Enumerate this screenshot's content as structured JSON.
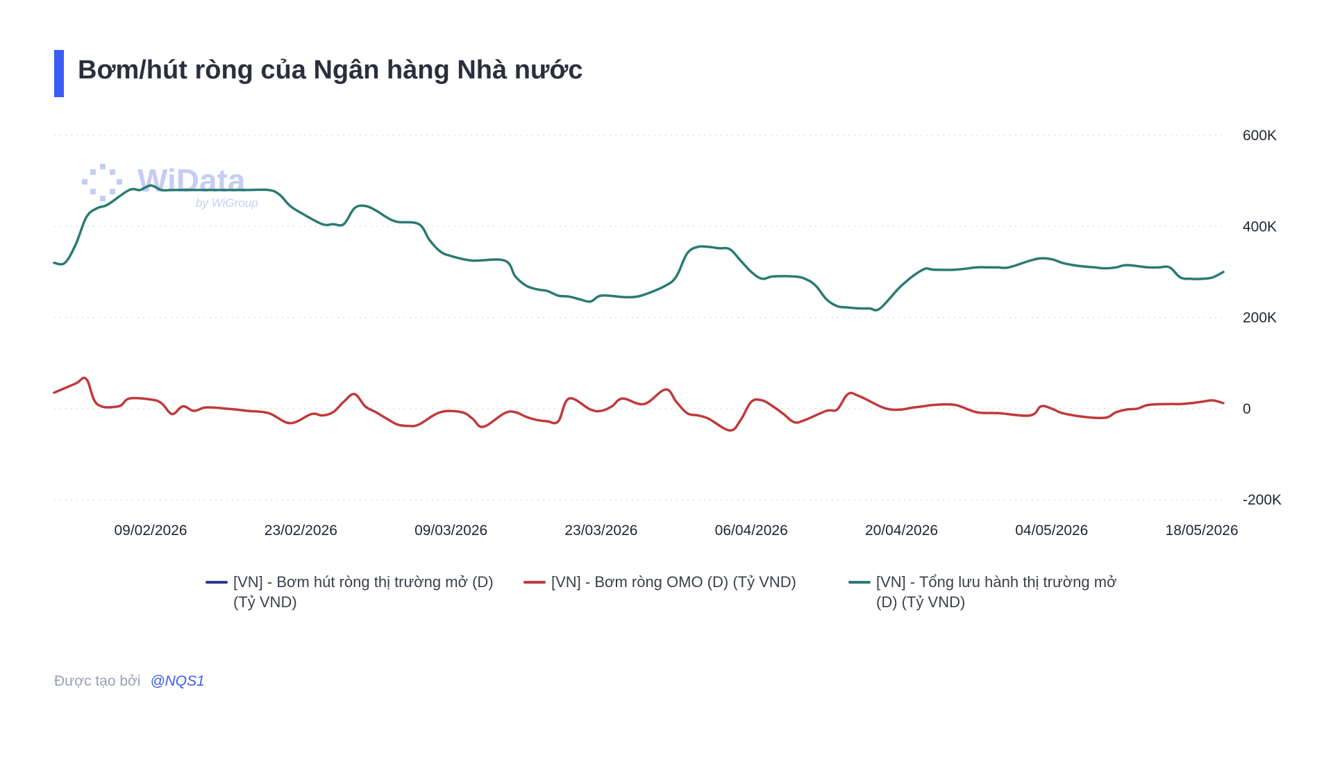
{
  "header": {
    "title": "Bơm/hút ròng của Ngân hàng Nhà nước"
  },
  "watermark": {
    "brand": "WiData",
    "sub": "by WiGroup"
  },
  "footer": {
    "created_by": "Được tạo bởi",
    "handle": "@NQS1"
  },
  "colors": {
    "accent": "#3b5cf5",
    "series_net": "#2e3a8c",
    "series_omo": "#c0393b",
    "series_total": "#2a7a72"
  },
  "chart_data": {
    "type": "line",
    "title": "Bơm/hút ròng của Ngân hàng Nhà nước",
    "xlabel": "",
    "ylabel": "",
    "x_range": [
      "2026-01-31",
      "2026-05-20"
    ],
    "ylim": [
      -200000,
      600000
    ],
    "y_ticks": [
      {
        "value": 600000,
        "label": "600K"
      },
      {
        "value": 400000,
        "label": "400K"
      },
      {
        "value": 200000,
        "label": "200K"
      },
      {
        "value": 0,
        "label": "0"
      },
      {
        "value": -200000,
        "label": "-200K"
      }
    ],
    "x_ticks": [
      "09/02/2026",
      "23/02/2026",
      "09/03/2026",
      "23/03/2026",
      "06/04/2026",
      "20/04/2026",
      "04/05/2026",
      "18/05/2026"
    ],
    "grid": true,
    "legend_position": "bottom",
    "series": [
      {
        "name": "[VN] - Bơm hút ròng thị trường mở (D) (Tỷ VND)",
        "color": "#2e3a8c",
        "x": [],
        "y": []
      },
      {
        "name": "[VN] - Bơm ròng OMO (D) (Tỷ VND)",
        "color": "#c0393b",
        "x": [
          "2026-01-31",
          "2026-02-02",
          "2026-02-03",
          "2026-02-04",
          "2026-02-06",
          "2026-02-07",
          "2026-02-09",
          "2026-02-10",
          "2026-02-11",
          "2026-02-12",
          "2026-02-13",
          "2026-02-14",
          "2026-02-15",
          "2026-02-16",
          "2026-02-17",
          "2026-02-18",
          "2026-02-20",
          "2026-02-22",
          "2026-02-24",
          "2026-02-25",
          "2026-02-26",
          "2026-02-27",
          "2026-02-28",
          "2026-03-01",
          "2026-03-02",
          "2026-03-03",
          "2026-03-04",
          "2026-03-05",
          "2026-03-06",
          "2026-03-08",
          "2026-03-10",
          "2026-03-11",
          "2026-03-12",
          "2026-03-14",
          "2026-03-15",
          "2026-03-16",
          "2026-03-17",
          "2026-03-18",
          "2026-03-19",
          "2026-03-20",
          "2026-03-22",
          "2026-03-23",
          "2026-03-24",
          "2026-03-25",
          "2026-03-27",
          "2026-03-29",
          "2026-03-30",
          "2026-03-31",
          "2026-04-01",
          "2026-04-02",
          "2026-04-04",
          "2026-04-05",
          "2026-04-06",
          "2026-04-07",
          "2026-04-08",
          "2026-04-09",
          "2026-04-10",
          "2026-04-11",
          "2026-04-13",
          "2026-04-14",
          "2026-04-15",
          "2026-04-16",
          "2026-04-18",
          "2026-04-19",
          "2026-04-20",
          "2026-04-21",
          "2026-04-22",
          "2026-04-23",
          "2026-04-25",
          "2026-04-27",
          "2026-04-29",
          "2026-05-02",
          "2026-05-03",
          "2026-05-04",
          "2026-05-05",
          "2026-05-07",
          "2026-05-09",
          "2026-05-10",
          "2026-05-11",
          "2026-05-12",
          "2026-05-13",
          "2026-05-15",
          "2026-05-16",
          "2026-05-17",
          "2026-05-18",
          "2026-05-19",
          "2026-05-20"
        ],
        "y": [
          35000,
          55000,
          65000,
          10000,
          5000,
          22000,
          20000,
          12000,
          -12000,
          5000,
          -5000,
          2000,
          2000,
          0,
          -2000,
          -5000,
          -10000,
          -32000,
          -12000,
          -15000,
          -8000,
          15000,
          32000,
          5000,
          -8000,
          -22000,
          -35000,
          -38000,
          -35000,
          -8000,
          -8000,
          -22000,
          -40000,
          -10000,
          -8000,
          -18000,
          -25000,
          -28000,
          -28000,
          22000,
          -2000,
          -5000,
          5000,
          22000,
          10000,
          42000,
          15000,
          -10000,
          -15000,
          -22000,
          -48000,
          -25000,
          15000,
          18000,
          5000,
          -12000,
          -30000,
          -25000,
          -5000,
          -2000,
          32000,
          28000,
          5000,
          -2000,
          -2000,
          2000,
          5000,
          8000,
          8000,
          -8000,
          -10000,
          -15000,
          5000,
          0,
          -10000,
          -18000,
          -20000,
          -8000,
          -2000,
          0,
          8000,
          10000,
          10000,
          12000,
          15000,
          18000,
          12000
        ]
      },
      {
        "name": "[VN] - Tổng lưu hành thị trường mở (D) (Tỷ VND)",
        "color": "#2a7a72",
        "x": [
          "2026-01-31",
          "2026-02-01",
          "2026-02-02",
          "2026-02-03",
          "2026-02-04",
          "2026-02-05",
          "2026-02-07",
          "2026-02-08",
          "2026-02-09",
          "2026-02-10",
          "2026-02-11",
          "2026-02-13",
          "2026-02-16",
          "2026-02-18",
          "2026-02-20",
          "2026-02-21",
          "2026-02-22",
          "2026-02-23",
          "2026-02-25",
          "2026-02-26",
          "2026-02-27",
          "2026-02-28",
          "2026-03-01",
          "2026-03-02",
          "2026-03-03",
          "2026-03-04",
          "2026-03-06",
          "2026-03-07",
          "2026-03-08",
          "2026-03-09",
          "2026-03-11",
          "2026-03-14",
          "2026-03-15",
          "2026-03-16",
          "2026-03-17",
          "2026-03-18",
          "2026-03-19",
          "2026-03-20",
          "2026-03-21",
          "2026-03-22",
          "2026-03-23",
          "2026-03-25",
          "2026-03-26",
          "2026-03-27",
          "2026-03-29",
          "2026-03-30",
          "2026-03-31",
          "2026-04-01",
          "2026-04-02",
          "2026-04-03",
          "2026-04-04",
          "2026-04-05",
          "2026-04-06",
          "2026-04-07",
          "2026-04-08",
          "2026-04-10",
          "2026-04-11",
          "2026-04-12",
          "2026-04-13",
          "2026-04-14",
          "2026-04-15",
          "2026-04-16",
          "2026-04-17",
          "2026-04-18",
          "2026-04-20",
          "2026-04-22",
          "2026-04-23",
          "2026-04-25",
          "2026-04-27",
          "2026-04-28",
          "2026-04-29",
          "2026-04-30",
          "2026-05-02",
          "2026-05-03",
          "2026-05-04",
          "2026-05-05",
          "2026-05-06",
          "2026-05-07",
          "2026-05-08",
          "2026-05-09",
          "2026-05-10",
          "2026-05-11",
          "2026-05-13",
          "2026-05-14",
          "2026-05-15",
          "2026-05-16",
          "2026-05-17",
          "2026-05-18",
          "2026-05-19",
          "2026-05-20"
        ],
        "y": [
          320000,
          320000,
          360000,
          420000,
          440000,
          448000,
          480000,
          480000,
          490000,
          480000,
          480000,
          480000,
          480000,
          480000,
          480000,
          470000,
          445000,
          430000,
          405000,
          405000,
          405000,
          440000,
          445000,
          435000,
          420000,
          410000,
          405000,
          370000,
          345000,
          335000,
          325000,
          325000,
          290000,
          270000,
          262000,
          258000,
          248000,
          246000,
          240000,
          235000,
          248000,
          245000,
          245000,
          250000,
          270000,
          290000,
          340000,
          355000,
          355000,
          352000,
          350000,
          325000,
          300000,
          285000,
          290000,
          290000,
          285000,
          270000,
          240000,
          225000,
          222000,
          220000,
          220000,
          220000,
          270000,
          305000,
          305000,
          305000,
          310000,
          310000,
          310000,
          310000,
          325000,
          330000,
          328000,
          320000,
          315000,
          312000,
          310000,
          308000,
          310000,
          315000,
          310000,
          310000,
          310000,
          288000,
          285000,
          285000,
          288000,
          300000
        ]
      }
    ]
  }
}
